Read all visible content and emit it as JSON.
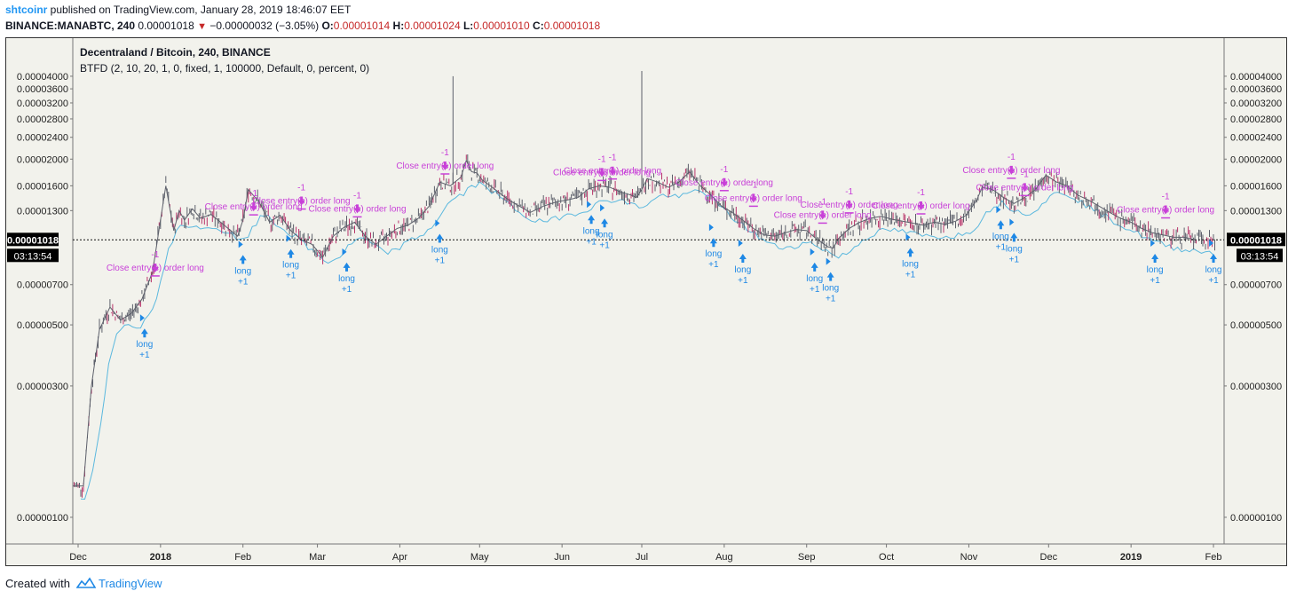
{
  "header": {
    "author": "shtcoinr",
    "published_text": " published on TradingView.com, January 28, 2019 18:46:07 EET",
    "symbol": "BINANCE:MANABTC, 240",
    "last_price": "0.00001018",
    "change": "−0.00000032 (−3.05%)",
    "ohlc": [
      {
        "label": "O:",
        "value": "0.00001014"
      },
      {
        "label": "H:",
        "value": "0.00001024"
      },
      {
        "label": "L:",
        "value": "0.00001010"
      },
      {
        "label": "C:",
        "value": "0.00001018"
      }
    ]
  },
  "legend": {
    "title": "Decentraland / Bitcoin, 240, BINANCE",
    "indicator": "BTFD (2, 10, 20, 1, 0, fixed, 1, 100000, Default, 0, percent, 0)"
  },
  "price_badge": {
    "price": "0.00001018",
    "countdown": "03:13:54"
  },
  "footer": {
    "created_with": "Created with",
    "brand": "TradingView"
  },
  "colors": {
    "background": "#f2f2ec",
    "candle": "#5d606b",
    "candle_accent": "#b8336a",
    "sma": "#5bb8de",
    "long_signal": "#1e88e5",
    "close_signal": "#c840d8",
    "user": "#2196f3",
    "down": "#c62828"
  },
  "chart_data": {
    "type": "candlestick",
    "title": "Decentraland / Bitcoin, 240, BINANCE",
    "y_scale": "log",
    "ylim": [
      8e-07,
      5.5e-05
    ],
    "y_ticks": [
      "0.00000100",
      "0.00000300",
      "0.00000500",
      "0.00000700",
      "0.00001300",
      "0.00001600",
      "0.00002000",
      "0.00002400",
      "0.00002800",
      "0.00003200",
      "0.00003600",
      "0.00004000"
    ],
    "x_ticks": [
      {
        "label": "Dec",
        "day": 0,
        "bold": false
      },
      {
        "label": "2018",
        "day": 31,
        "bold": true
      },
      {
        "label": "Feb",
        "day": 62,
        "bold": false
      },
      {
        "label": "Mar",
        "day": 90,
        "bold": false
      },
      {
        "label": "Apr",
        "day": 121,
        "bold": false
      },
      {
        "label": "May",
        "day": 151,
        "bold": false
      },
      {
        "label": "Jun",
        "day": 182,
        "bold": false
      },
      {
        "label": "Jul",
        "day": 212,
        "bold": false
      },
      {
        "label": "Aug",
        "day": 243,
        "bold": false
      },
      {
        "label": "Sep",
        "day": 274,
        "bold": false
      },
      {
        "label": "Oct",
        "day": 304,
        "bold": false
      },
      {
        "label": "Nov",
        "day": 335,
        "bold": false
      },
      {
        "label": "Dec",
        "day": 365,
        "bold": false
      },
      {
        "label": "2019",
        "day": 396,
        "bold": true
      },
      {
        "label": "Feb",
        "day": 427,
        "bold": false
      }
    ],
    "x_range_days": [
      -2,
      431
    ],
    "last_price": 1.018e-05,
    "price_series": {
      "days": [
        -2,
        2,
        5,
        8,
        12,
        16,
        20,
        24,
        28,
        31,
        33,
        36,
        38,
        40,
        43,
        46,
        50,
        55,
        60,
        62,
        64,
        68,
        72,
        76,
        80,
        84,
        88,
        92,
        96,
        100,
        104,
        108,
        112,
        116,
        120,
        124,
        128,
        132,
        136,
        140,
        144,
        146,
        148,
        150,
        152,
        155,
        158,
        162,
        166,
        170,
        175,
        180,
        184,
        188,
        192,
        196,
        200,
        204,
        208,
        210,
        212,
        214,
        218,
        222,
        226,
        230,
        234,
        238,
        242,
        246,
        250,
        254,
        258,
        262,
        266,
        270,
        274,
        278,
        282,
        284,
        286,
        290,
        294,
        298,
        302,
        306,
        310,
        314,
        318,
        322,
        326,
        330,
        334,
        338,
        340,
        344,
        348,
        352,
        356,
        360,
        364,
        368,
        372,
        376,
        380,
        384,
        388,
        392,
        396,
        400,
        404,
        408,
        412,
        416,
        420
      ],
      "values": [
        1.3e-06,
        1.3e-06,
        3e-06,
        4.8e-06,
        5.8e-06,
        5.2e-06,
        5.5e-06,
        6.2e-06,
        7.8e-06,
        1.2e-05,
        1.6e-05,
        1.1e-05,
        1.3e-05,
        1.2e-05,
        1.32e-05,
        1.22e-05,
        1.26e-05,
        1.15e-05,
        1.05e-05,
        1.2e-05,
        1.55e-05,
        1.4e-05,
        1.18e-05,
        1.25e-05,
        1.1e-05,
        1.02e-05,
        9.8e-06,
        8.8e-06,
        1.05e-05,
        1.13e-05,
        1.18e-05,
        1.05e-05,
        9.8e-06,
        1.05e-05,
        1.12e-05,
        1.15e-05,
        1.22e-05,
        1.35e-05,
        1.65e-05,
        1.6e-05,
        1.72e-05,
        1.98e-05,
        1.8e-05,
        1.78e-05,
        1.68e-05,
        1.6e-05,
        1.52e-05,
        1.42e-05,
        1.35e-05,
        1.28e-05,
        1.35e-05,
        1.4e-05,
        1.42e-05,
        1.45e-05,
        1.56e-05,
        1.6e-05,
        1.58e-05,
        1.52e-05,
        1.48e-05,
        1.45e-05,
        1.55e-05,
        1.7e-05,
        1.65e-05,
        1.58e-05,
        1.65e-05,
        1.8e-05,
        1.6e-05,
        1.48e-05,
        1.35e-05,
        1.28e-05,
        1.2e-05,
        1.12e-05,
        1.06e-05,
        1.05e-05,
        1.08e-05,
        1.11e-05,
        1.1e-05,
        1.02e-05,
        9.6e-06,
        9.5e-06,
        1.03e-05,
        1.12e-05,
        1.18e-05,
        1.22e-05,
        1.24e-05,
        1.21e-05,
        1.19e-05,
        1.17e-05,
        1.15e-05,
        1.18e-05,
        1.16e-05,
        1.19e-05,
        1.25e-05,
        1.42e-05,
        1.58e-05,
        1.55e-05,
        1.45e-05,
        1.38e-05,
        1.45e-05,
        1.55e-05,
        1.75e-05,
        1.65e-05,
        1.6e-05,
        1.48e-05,
        1.42e-05,
        1.35e-05,
        1.28e-05,
        1.22e-05,
        1.18e-05,
        1.12e-05,
        1.08e-05,
        1.06e-05,
        1.04e-05,
        1.04e-05,
        1.02e-05
      ]
    },
    "spikes": [
      {
        "day": 141,
        "high": 4e-05
      },
      {
        "day": 212,
        "high": 4.18e-05
      }
    ],
    "signals": [
      {
        "type": "long",
        "day": 25,
        "price": 5.3e-06,
        "label": "long",
        "qty": "+1"
      },
      {
        "type": "close",
        "day": 29,
        "price": 7.2e-06,
        "label": "Close entry(s) order long",
        "qty": "-1"
      },
      {
        "type": "long",
        "day": 62,
        "price": 9.8e-06,
        "label": "long",
        "qty": "+1"
      },
      {
        "type": "close",
        "day": 66,
        "price": 1.2e-05,
        "label": "Close entry(s) order long",
        "qty": "-1"
      },
      {
        "type": "long",
        "day": 80,
        "price": 1.03e-05,
        "label": "long",
        "qty": "+1"
      },
      {
        "type": "close",
        "day": 84,
        "price": 1.26e-05,
        "label": "Close entry(s) order long",
        "qty": "-1"
      },
      {
        "type": "long",
        "day": 101,
        "price": 9.2e-06,
        "label": "long",
        "qty": "+1"
      },
      {
        "type": "close",
        "day": 105,
        "price": 1.18e-05,
        "label": "Close entry(s) order long",
        "qty": "-1"
      },
      {
        "type": "long",
        "day": 136,
        "price": 1.17e-05,
        "label": "long",
        "qty": "+1"
      },
      {
        "type": "close",
        "day": 138,
        "price": 1.69e-05,
        "label": "Close entry(s) order long",
        "qty": "-1"
      },
      {
        "type": "long",
        "day": 193,
        "price": 1.37e-05,
        "label": "long",
        "qty": "+1"
      },
      {
        "type": "close",
        "day": 197,
        "price": 1.6e-05,
        "label": "Close entry(s) order long",
        "qty": "-1"
      },
      {
        "type": "long",
        "day": 198,
        "price": 1.33e-05,
        "label": "long",
        "qty": "+1"
      },
      {
        "type": "close",
        "day": 201,
        "price": 1.62e-05,
        "label": "Close entry(s) order long",
        "qty": "-1"
      },
      {
        "type": "long",
        "day": 239,
        "price": 1.13e-05,
        "label": "long",
        "qty": "+1"
      },
      {
        "type": "close",
        "day": 243,
        "price": 1.47e-05,
        "label": "Close entry(s) order long",
        "qty": "-1"
      },
      {
        "type": "long",
        "day": 250,
        "price": 9.9e-06,
        "label": "long",
        "qty": "+1"
      },
      {
        "type": "close",
        "day": 254,
        "price": 1.29e-05,
        "label": "Close entry(s) order long",
        "qty": "-1"
      },
      {
        "type": "long",
        "day": 277,
        "price": 9.2e-06,
        "label": "long",
        "qty": "+1"
      },
      {
        "type": "close",
        "day": 280,
        "price": 1.12e-05,
        "label": "Close entry(s) order long",
        "qty": "-1"
      },
      {
        "type": "long",
        "day": 283,
        "price": 8.5e-06,
        "label": "long",
        "qty": "+1"
      },
      {
        "type": "close",
        "day": 290,
        "price": 1.22e-05,
        "label": "Close entry(s) order long",
        "qty": "-1"
      },
      {
        "type": "long",
        "day": 313,
        "price": 1.04e-05,
        "label": "long",
        "qty": "+1"
      },
      {
        "type": "close",
        "day": 317,
        "price": 1.21e-05,
        "label": "Close entry(s) order long",
        "qty": "-1"
      },
      {
        "type": "long",
        "day": 347,
        "price": 1.31e-05,
        "label": "long",
        "qty": "+1"
      },
      {
        "type": "close",
        "day": 351,
        "price": 1.63e-05,
        "label": "Close entry(s) order long",
        "qty": "-1"
      },
      {
        "type": "long",
        "day": 352,
        "price": 1.18e-05,
        "label": "long",
        "qty": "+1"
      },
      {
        "type": "close",
        "day": 356,
        "price": 1.41e-05,
        "label": "Close entry(s) order long",
        "qty": "-1"
      },
      {
        "type": "long",
        "day": 405,
        "price": 9.9e-06,
        "label": "long",
        "qty": "+1"
      },
      {
        "type": "close",
        "day": 409,
        "price": 1.17e-05,
        "label": "Close entry(s) order long",
        "qty": "-1"
      },
      {
        "type": "long",
        "day": 427,
        "price": 9.9e-06,
        "label": "long",
        "qty": "+1"
      }
    ]
  }
}
